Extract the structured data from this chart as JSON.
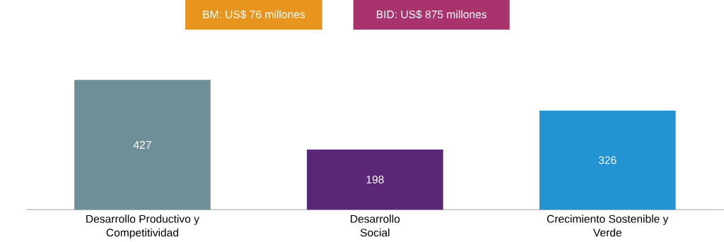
{
  "chart_data": {
    "type": "bar",
    "categories": [
      "Desarrollo Productivo y Competitividad",
      "Desarrollo Social",
      "Crecimiento Sostenible y Verde"
    ],
    "values": [
      427,
      198,
      326
    ],
    "colors": [
      "#6f8f98",
      "#5b2675",
      "#2394d1"
    ],
    "data_labels": true,
    "tick_labels": "x",
    "annotations": [
      "BM: US$ 76 millones",
      "BID: US$ 875 millones"
    ]
  }
}
